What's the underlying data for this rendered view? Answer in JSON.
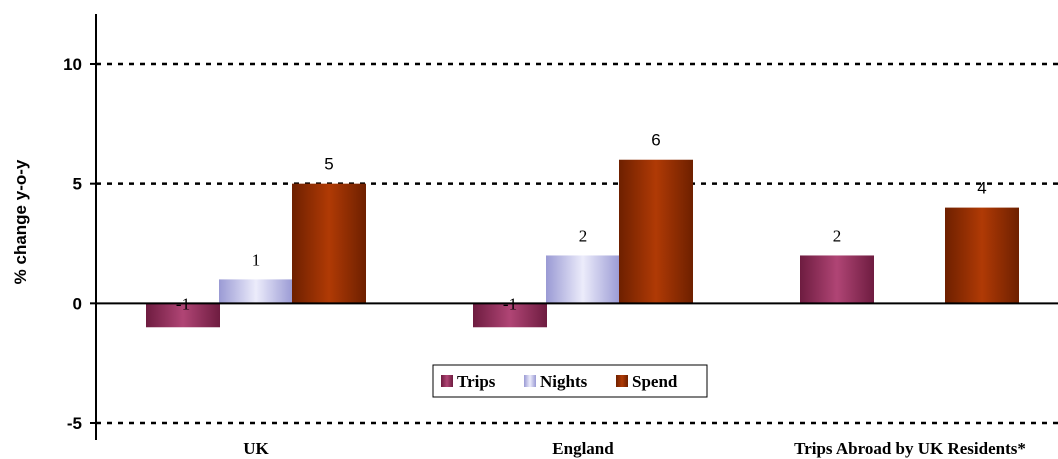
{
  "chart_data": {
    "type": "bar",
    "categories": [
      "UK",
      "England",
      "Trips Abroad by UK Residents*"
    ],
    "series": [
      {
        "name": "Trips",
        "values": [
          -1,
          -1,
          2
        ],
        "color": "#8f2a58",
        "labels": [
          "-1",
          "-1",
          "2"
        ]
      },
      {
        "name": "Nights",
        "values": [
          1,
          2,
          null
        ],
        "color": "#b8b8e4",
        "labels": [
          "1",
          "2",
          ""
        ]
      },
      {
        "name": "Spend",
        "values": [
          5,
          6,
          4
        ],
        "color": "#962d00",
        "labels": [
          "5",
          "6",
          "4"
        ]
      }
    ],
    "title": "",
    "xlabel": "",
    "ylabel": "% change y-o-y",
    "ylim": [
      -5,
      10
    ],
    "yticks": [
      -5,
      0,
      5,
      10
    ],
    "ytick_labels": [
      "-5",
      "0",
      "5",
      "10"
    ],
    "grid": "dashed horizontal lines at -5, 5 and 10",
    "legend_position": "bottom-center"
  }
}
